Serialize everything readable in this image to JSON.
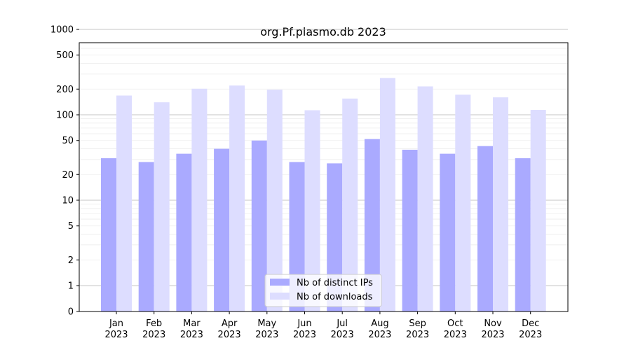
{
  "chart_data": {
    "type": "bar",
    "title": "org.Pf.plasmo.db 2023",
    "xlabel": "",
    "ylabel": "",
    "yscale": "symlog",
    "ylim": [
      0,
      1200
    ],
    "yticks": [
      0,
      1,
      2,
      5,
      10,
      20,
      50,
      100,
      200,
      500,
      1000
    ],
    "grid": true,
    "legend_position": "bottom-center",
    "categories": [
      "Jan\n2023",
      "Feb\n2023",
      "Mar\n2023",
      "Apr\n2023",
      "May\n2023",
      "Jun\n2023",
      "Jul\n2023",
      "Aug\n2023",
      "Sep\n2023",
      "Oct\n2023",
      "Nov\n2023",
      "Dec\n2023"
    ],
    "series": [
      {
        "name": "Nb of distinct IPs",
        "color": "#aaaaff",
        "values": [
          31,
          28,
          35,
          40,
          50,
          28,
          27,
          52,
          39,
          35,
          43,
          31
        ]
      },
      {
        "name": "Nb of downloads",
        "color": "#ddddff",
        "values": [
          168,
          140,
          202,
          220,
          197,
          113,
          155,
          270,
          215,
          172,
          160,
          114
        ]
      }
    ]
  }
}
